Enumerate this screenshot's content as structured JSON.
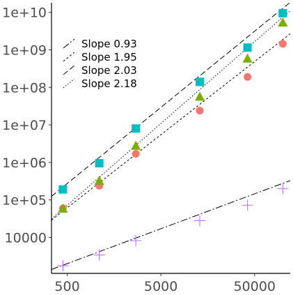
{
  "chart_data": {
    "type": "scatter",
    "title": "",
    "xlabel": "",
    "ylabel": "",
    "x_scale": "log",
    "y_scale": "log",
    "xlim": [
      340,
      120000
    ],
    "ylim": [
      1100,
      18000000000
    ],
    "grid": false,
    "legend_position": "top-left",
    "x_ticks": [
      {
        "value": 500,
        "label": "500"
      },
      {
        "value": 5000,
        "label": "5000"
      },
      {
        "value": 50000,
        "label": "50000"
      }
    ],
    "y_ticks": [
      {
        "value": 10000,
        "label": "10000"
      },
      {
        "value": 100000,
        "label": "1e+05"
      },
      {
        "value": 1000000,
        "label": "1e+06"
      },
      {
        "value": 10000000,
        "label": "1e+07"
      },
      {
        "value": 100000000,
        "label": "1e+08"
      },
      {
        "value": 1000000000,
        "label": "1e+09"
      },
      {
        "value": 10000000000,
        "label": "1e+10"
      }
    ],
    "legend": [
      {
        "label": "Slope 0.93",
        "dash": "10 3 2 3"
      },
      {
        "label": "Slope 1.95",
        "dash": "3 3"
      },
      {
        "label": "Slope 2.03",
        "dash": "8 4"
      },
      {
        "label": "Slope 2.18",
        "dash": "1.5 2.5"
      }
    ],
    "series": [
      {
        "marker": "plus",
        "color": "#c77cff",
        "x": [
          450,
          1100,
          2700,
          13000,
          42000,
          100000
        ],
        "y": [
          1750,
          3400,
          8200,
          28000,
          72000,
          200000
        ],
        "fit": {
          "slope": 0.93,
          "x0": 340,
          "y0": 1400,
          "dash": "10 3 2 3",
          "color": "#000000"
        }
      },
      {
        "marker": "circle",
        "color": "#f8766d",
        "x": [
          450,
          1100,
          2700,
          13000,
          42000,
          100000
        ],
        "y": [
          60000,
          240000,
          1700000,
          24000000,
          190000000,
          1450000000
        ],
        "fit": {
          "slope": 1.95,
          "x0": 340,
          "y0": 29000,
          "dash": "3 3",
          "color": "#000000"
        }
      },
      {
        "marker": "triangle",
        "color": "#7cae00",
        "x": [
          450,
          1100,
          2700,
          13000,
          42000,
          100000
        ],
        "y": [
          58000,
          320000,
          2750000,
          56000000,
          580000000,
          5300000000
        ],
        "fit": {
          "slope": 2.18,
          "x0": 340,
          "y0": 31000,
          "dash": "1.5 2.5",
          "color": "#000000"
        }
      },
      {
        "marker": "square",
        "color": "#00bfc4",
        "x": [
          450,
          1100,
          2700,
          13000,
          42000,
          100000
        ],
        "y": [
          190000,
          950000,
          8000000,
          140000000,
          1150000000,
          9500000000
        ],
        "fit": {
          "slope": 2.03,
          "x0": 340,
          "y0": 125000,
          "dash": "8 4",
          "color": "#000000"
        }
      }
    ]
  }
}
